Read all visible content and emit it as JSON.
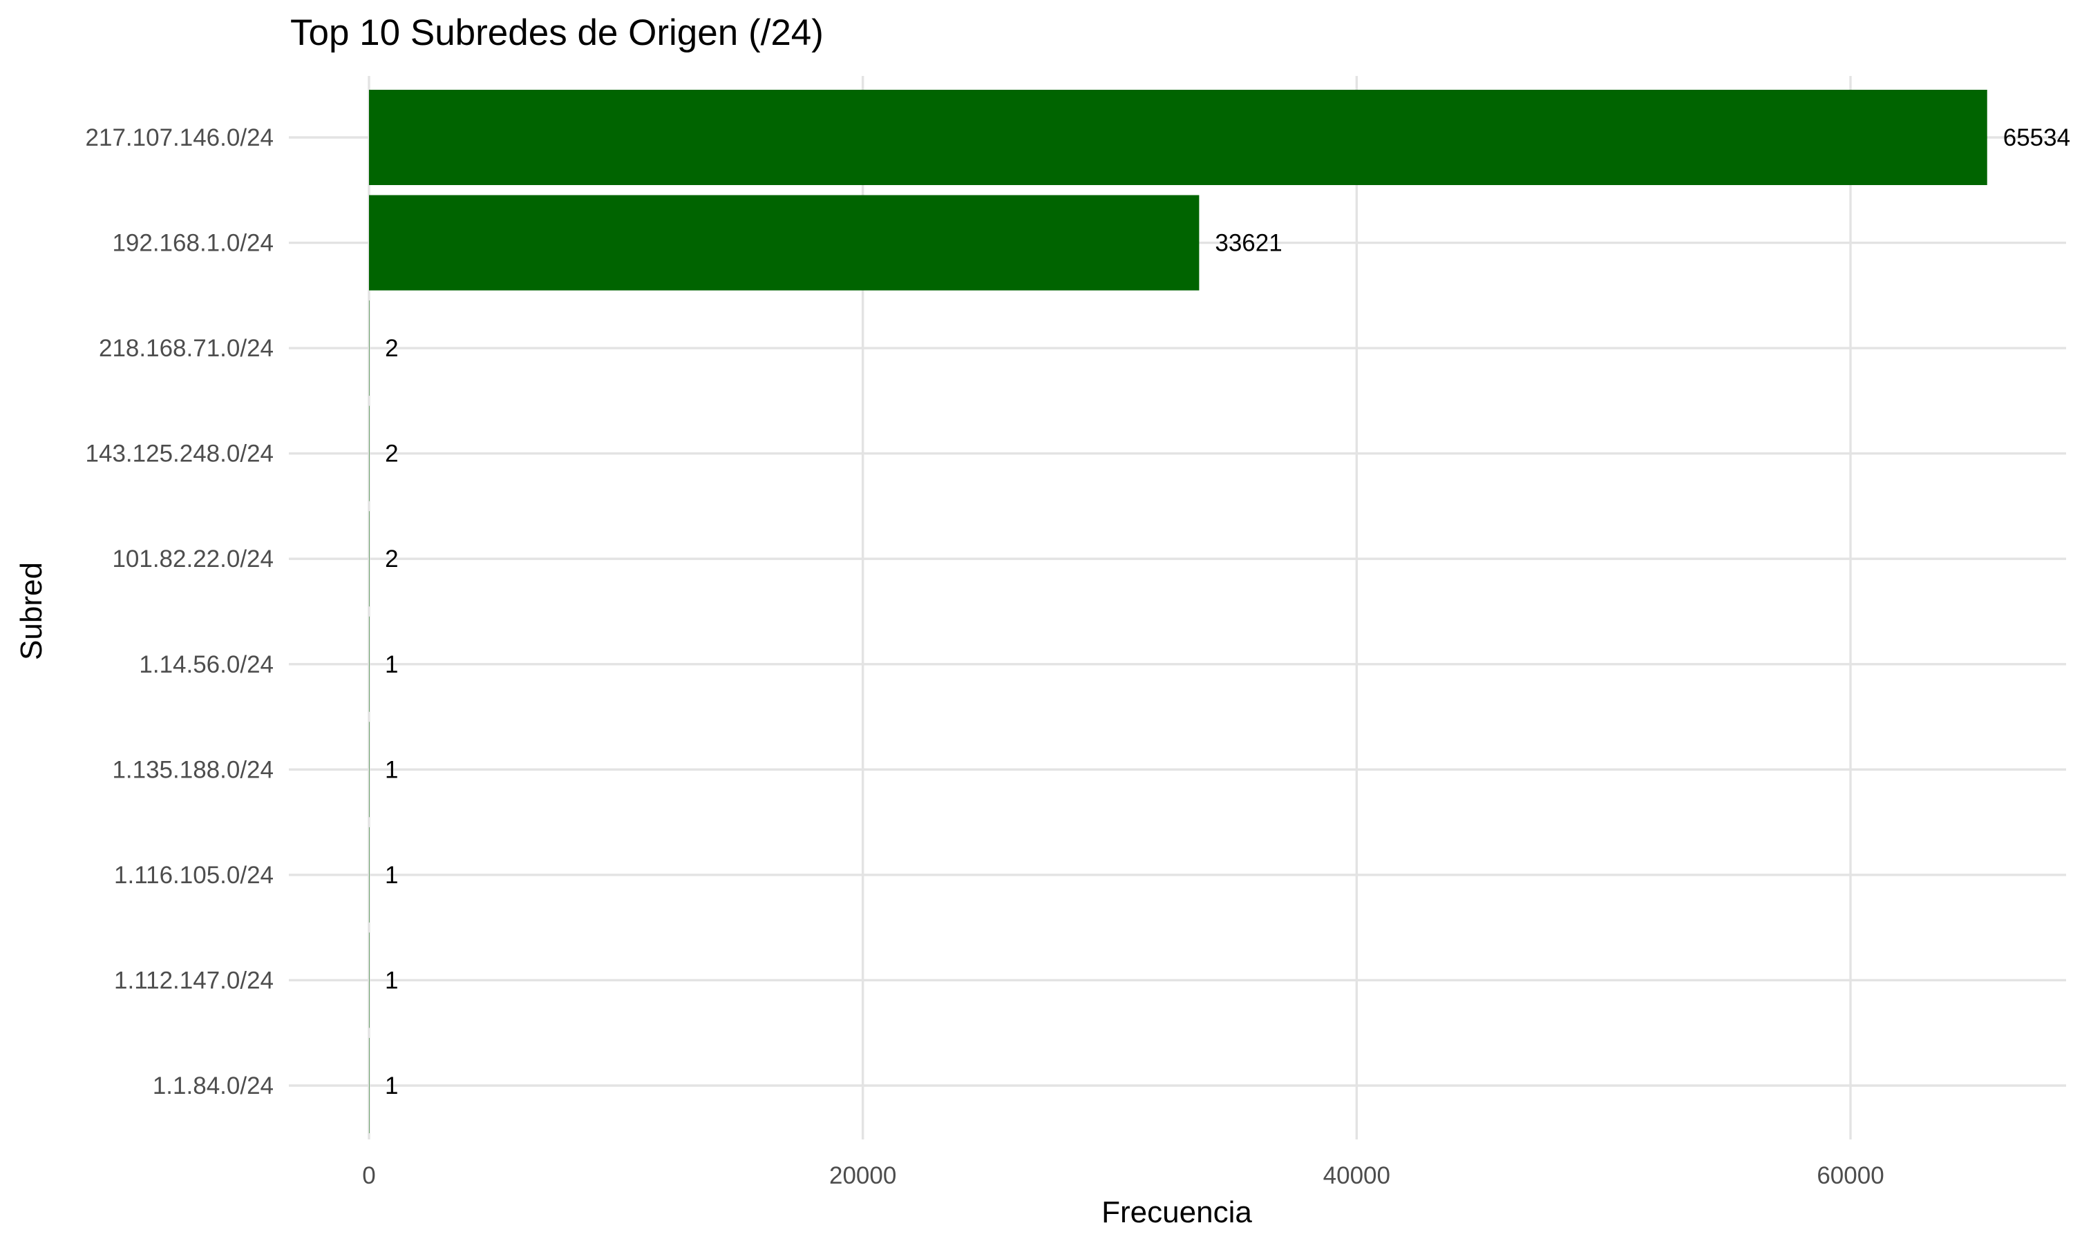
{
  "chart_data": {
    "type": "bar",
    "orientation": "horizontal",
    "title": "Top 10 Subredes de Origen (/24)",
    "xlabel": "Frecuencia",
    "ylabel": "Subred",
    "categories": [
      "217.107.146.0/24",
      "192.168.1.0/24",
      "218.168.71.0/24",
      "143.125.248.0/24",
      "101.82.22.0/24",
      "1.14.56.0/24",
      "1.135.188.0/24",
      "1.116.105.0/24",
      "1.112.147.0/24",
      "1.1.84.0/24"
    ],
    "values": [
      65534,
      33621,
      2,
      2,
      2,
      1,
      1,
      1,
      1,
      1
    ],
    "data_labels": [
      "65534",
      "33621",
      "2",
      "2",
      "2",
      "1",
      "1",
      "1",
      "1",
      "1"
    ],
    "xlim": [
      0,
      69000
    ],
    "xticks": [
      0,
      20000,
      40000,
      60000
    ],
    "xtick_labels": [
      "0",
      "20000",
      "40000",
      "60000"
    ],
    "bar_color": "#006400",
    "grid": true,
    "legend": "none"
  }
}
